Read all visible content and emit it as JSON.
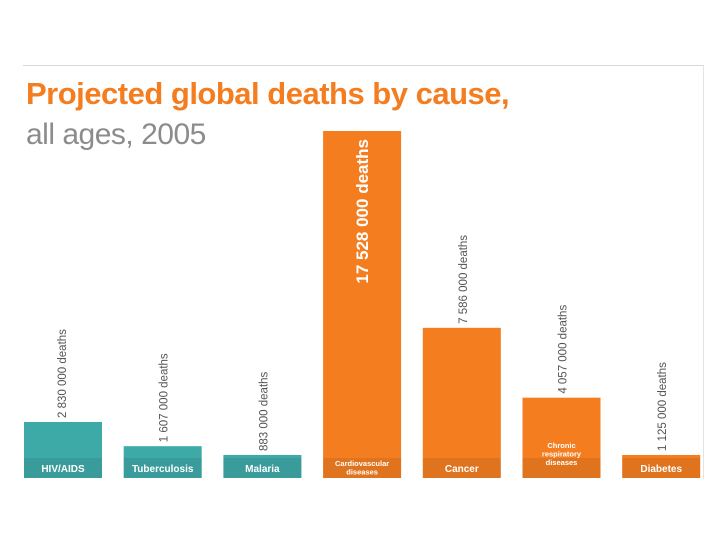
{
  "chart_data": {
    "type": "bar",
    "title": "Projected global deaths by cause,",
    "subtitle": "all ages, 2005",
    "categories": [
      "HIV/AIDS",
      "Tuberculosis",
      "Malaria",
      "Cardiovascular diseases",
      "Cancer",
      "Chronic respiratory diseases",
      "Diabetes"
    ],
    "category_lines": [
      [
        "HIV/AIDS"
      ],
      [
        "Tuberculosis"
      ],
      [
        "Malaria"
      ],
      [
        "Cardiovascular",
        "diseases"
      ],
      [
        "Cancer"
      ],
      [
        "Chronic",
        "respiratory",
        "diseases"
      ],
      [
        "Diabetes"
      ]
    ],
    "values": [
      2830000,
      1607000,
      883000,
      17528000,
      7586000,
      4057000,
      1125000
    ],
    "value_labels": [
      "2 830 000 deaths",
      "1 607 000 deaths",
      "883 000 deaths",
      "17 528 000 deaths",
      "7 586 000 deaths",
      "4 057 000 deaths",
      "1 125 000 deaths"
    ],
    "group": [
      "communicable",
      "communicable",
      "communicable",
      "chronic",
      "chronic",
      "chronic",
      "chronic"
    ],
    "colors": {
      "communicable": "#3eaaa8",
      "chronic": "#f47d20",
      "label_text": "#555555"
    },
    "ylim": [
      0,
      17528000
    ],
    "grid": false
  }
}
